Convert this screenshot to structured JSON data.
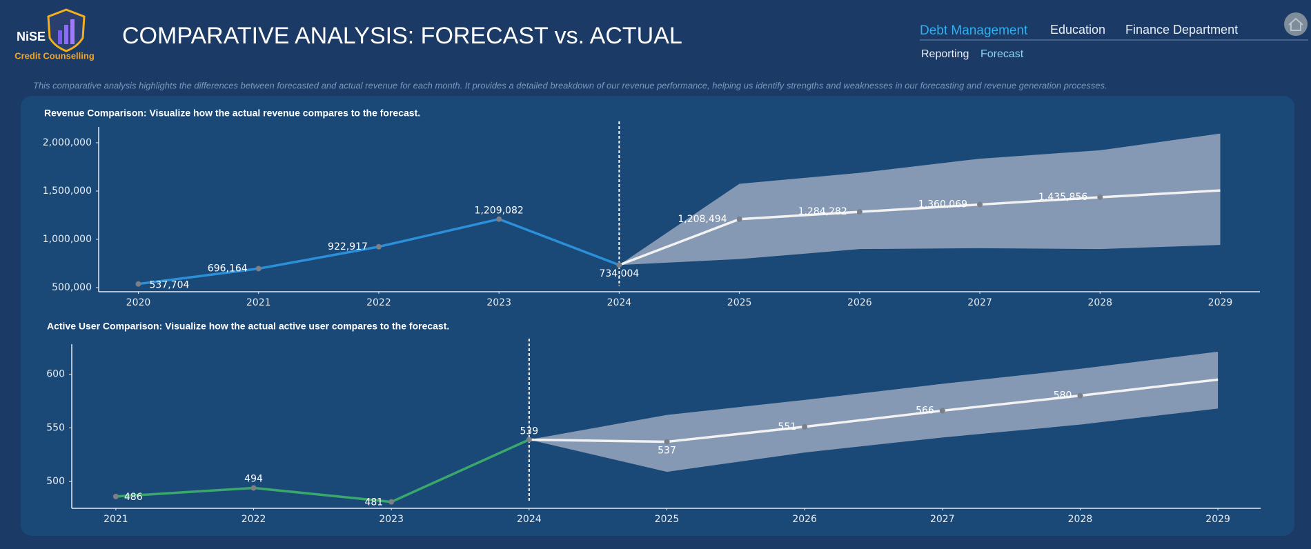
{
  "header": {
    "logo_name": "NiSE",
    "logo_subtitle": "Credit Counselling",
    "title": "COMPARATIVE ANALYSIS: FORECAST vs. ACTUAL"
  },
  "nav": {
    "tabs": [
      "Debt Management",
      "Education",
      "Finance Department"
    ],
    "subtabs": [
      "Reporting",
      "Forecast"
    ]
  },
  "description": "This comparative analysis highlights the differences between forecasted and actual revenue for each month. It provides a detailed breakdown of our revenue performance, helping us identify strengths and weaknesses in our forecasting and revenue generation processes.",
  "chart_data": [
    {
      "type": "line",
      "title": "Revenue Comparison: Visualize how the actual revenue compares to the forecast.",
      "x": [
        2020,
        2021,
        2022,
        2023,
        2024,
        2025,
        2026,
        2027,
        2028,
        2029
      ],
      "xlim": [
        2019.67,
        2029.33
      ],
      "xticks": [
        2020,
        2021,
        2022,
        2023,
        2024,
        2025,
        2026,
        2027,
        2028,
        2029
      ],
      "ylim": [
        457000,
        2164000
      ],
      "yticks": [
        {
          "value": 500000,
          "label": "500,000"
        },
        {
          "value": 1000000,
          "label": "1,000,000"
        },
        {
          "value": 1500000,
          "label": "1,500,000"
        },
        {
          "value": 2000000,
          "label": "2,000,000"
        }
      ],
      "forecast_start": 2024,
      "series": [
        {
          "color": "#2b8fd9",
          "values": [
            537704,
            696164,
            922917,
            1209082,
            734004,
            null,
            null,
            null,
            null,
            null
          ],
          "value_labels": [
            "537,704",
            "696,164",
            "922,917",
            "1,209,082",
            "734,004",
            null,
            null,
            null,
            null,
            null
          ]
        },
        {
          "color": "#f2f2f2",
          "values": [
            null,
            null,
            null,
            null,
            734004,
            1208494,
            1284282,
            1360069,
            1435856,
            1506000
          ],
          "value_labels": [
            null,
            null,
            null,
            null,
            null,
            "1,208,494",
            "1,284,282",
            "1,360,069",
            "1,435,856",
            null
          ]
        }
      ],
      "band": {
        "color": "#8b9eb7",
        "upper": [
          null,
          null,
          null,
          null,
          734004,
          1575000,
          1688000,
          1835000,
          1922000,
          2095000
        ],
        "lower": [
          null,
          null,
          null,
          null,
          734004,
          795000,
          899000,
          908000,
          899000,
          942000
        ]
      }
    },
    {
      "type": "line",
      "title": "Active User Comparison: Visualize how the actual active user compares to the forecast.",
      "x": [
        2021,
        2022,
        2023,
        2024,
        2025,
        2026,
        2027,
        2028,
        2029
      ],
      "xlim": [
        2020.68,
        2029.31
      ],
      "xticks": [
        2021,
        2022,
        2023,
        2024,
        2025,
        2026,
        2027,
        2028,
        2029
      ],
      "ylim": [
        475,
        628
      ],
      "yticks": [
        500,
        550,
        600
      ],
      "forecast_start": 2024,
      "series": [
        {
          "color": "#3aa86b",
          "values": [
            486,
            494,
            481,
            539,
            null,
            null,
            null,
            null,
            null
          ],
          "value_labels": [
            "486",
            "494",
            "481",
            "539",
            null,
            null,
            null,
            null,
            null
          ]
        },
        {
          "color": "#f2f2f2",
          "values": [
            null,
            null,
            null,
            539,
            537,
            551,
            566,
            580,
            595
          ],
          "value_labels": [
            null,
            null,
            null,
            null,
            "537",
            "551",
            "566",
            "580",
            null
          ]
        }
      ],
      "band": {
        "color": "#8b9eb7",
        "upper": [
          null,
          null,
          null,
          539,
          562,
          576,
          591,
          605,
          621
        ],
        "lower": [
          null,
          null,
          null,
          539,
          509,
          527,
          541,
          553,
          568
        ]
      }
    }
  ]
}
